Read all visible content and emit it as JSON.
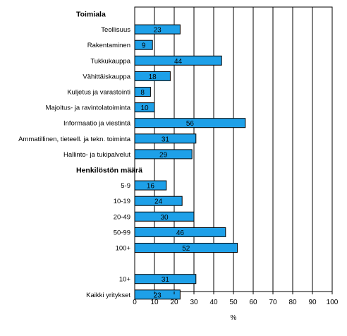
{
  "chart_data": {
    "type": "bar",
    "orientation": "horizontal",
    "xlabel": "%",
    "xlim": [
      0,
      100
    ],
    "xticks": [
      0,
      10,
      20,
      30,
      40,
      50,
      60,
      70,
      80,
      90,
      100
    ],
    "grid": true,
    "bar_color": "#1ea0e8",
    "rows": [
      {
        "kind": "header",
        "label": "Toimiala"
      },
      {
        "kind": "bar",
        "label": "Teollisuus",
        "value": 23
      },
      {
        "kind": "bar",
        "label": "Rakentaminen",
        "value": 9
      },
      {
        "kind": "bar",
        "label": "Tukkukauppa",
        "value": 44
      },
      {
        "kind": "bar",
        "label": "Vähittäiskauppa",
        "value": 18
      },
      {
        "kind": "bar",
        "label": "Kuljetus ja varastointi",
        "value": 8
      },
      {
        "kind": "bar",
        "label": "Majoitus- ja ravintolatoiminta",
        "value": 10
      },
      {
        "kind": "bar",
        "label": "Informaatio ja viestintä",
        "value": 56
      },
      {
        "kind": "bar",
        "label": "Ammatillinen, tieteell. ja tekn. toiminta",
        "value": 31
      },
      {
        "kind": "bar",
        "label": "Hallinto- ja tukipalvelut",
        "value": 29
      },
      {
        "kind": "header",
        "label": "Henkilöstön määrä"
      },
      {
        "kind": "bar",
        "label": "5-9",
        "value": 16
      },
      {
        "kind": "bar",
        "label": "10-19",
        "value": 24
      },
      {
        "kind": "bar",
        "label": "20-49",
        "value": 30
      },
      {
        "kind": "bar",
        "label": "50-99",
        "value": 46
      },
      {
        "kind": "bar",
        "label": "100+",
        "value": 52
      },
      {
        "kind": "spacer"
      },
      {
        "kind": "bar",
        "label": "10+",
        "value": 31
      },
      {
        "kind": "bar",
        "label": "Kaikki yritykset",
        "value": 23
      }
    ]
  }
}
